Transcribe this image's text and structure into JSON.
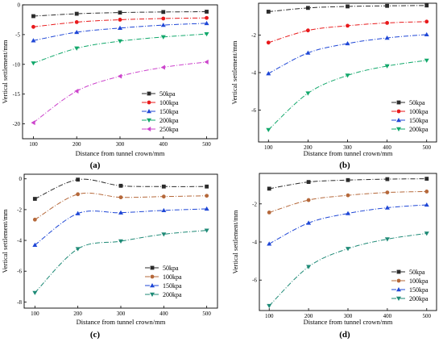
{
  "figure": {
    "panel_labels": [
      "(a)",
      "(b)",
      "(c)",
      "(d)"
    ]
  },
  "chart_data": [
    {
      "type": "line",
      "panel": "(a)",
      "xlabel": "Distance from tunnel crown/mm",
      "ylabel": "Vertical settlement/mm",
      "x": [
        100,
        200,
        300,
        400,
        500
      ],
      "xticks": [
        100,
        200,
        300,
        400,
        500
      ],
      "xlim": [
        75,
        525
      ],
      "yticks": [
        0,
        -5,
        -10,
        -15,
        -20
      ],
      "ylim": [
        -22.5,
        0
      ],
      "grid": false,
      "legend_position": "bottom-right",
      "series": [
        {
          "name": "50kpa",
          "values": [
            -1.9,
            -1.5,
            -1.3,
            -1.2,
            -1.15
          ],
          "color": "#2b2b2b",
          "marker": "square",
          "dash": "6,2,1,2"
        },
        {
          "name": "100kpa",
          "values": [
            -3.7,
            -2.9,
            -2.5,
            -2.3,
            -2.2
          ],
          "color": "#e8191b",
          "marker": "circle",
          "dash": "6,2,1,2"
        },
        {
          "name": "150kpa",
          "values": [
            -6.0,
            -4.6,
            -3.9,
            -3.4,
            -3.1
          ],
          "color": "#1f47d6",
          "marker": "triangle-up",
          "dash": "6,2,1,2"
        },
        {
          "name": "200kpa",
          "values": [
            -9.8,
            -7.3,
            -6.1,
            -5.4,
            -4.9
          ],
          "color": "#12a86b",
          "marker": "triangle-down",
          "dash": "6,2,1,2"
        },
        {
          "name": "250kpa",
          "values": [
            -19.8,
            -14.5,
            -12.0,
            -10.5,
            -9.6
          ],
          "color": "#cc44cc",
          "marker": "triangle-left",
          "dash": "6,2,1,2"
        }
      ]
    },
    {
      "type": "line",
      "panel": "(b)",
      "xlabel": "Distance from tunnel crown/mm",
      "ylabel": "Vertical settlement/mm",
      "x": [
        100,
        200,
        300,
        400,
        500
      ],
      "xticks": [
        100,
        200,
        300,
        400,
        500
      ],
      "xlim": [
        75,
        525
      ],
      "yticks": [
        -2,
        -4,
        -6
      ],
      "ylim": [
        -7.7,
        -0.3
      ],
      "grid": false,
      "legend_position": "bottom-right",
      "series": [
        {
          "name": "50kpa",
          "values": [
            -0.75,
            -0.55,
            -0.47,
            -0.44,
            -0.42
          ],
          "color": "#2b2b2b",
          "marker": "square",
          "dash": "6,2,1,2"
        },
        {
          "name": "100kpa",
          "values": [
            -2.4,
            -1.75,
            -1.5,
            -1.35,
            -1.28
          ],
          "color": "#e8191b",
          "marker": "circle",
          "dash": "6,2,1,2"
        },
        {
          "name": "150kpa",
          "values": [
            -4.05,
            -2.95,
            -2.45,
            -2.15,
            -1.97
          ],
          "color": "#1f47d6",
          "marker": "triangle-up",
          "dash": "6,2,1,2"
        },
        {
          "name": "200kpa",
          "values": [
            -7.05,
            -5.1,
            -4.15,
            -3.65,
            -3.35
          ],
          "color": "#12a86b",
          "marker": "triangle-down",
          "dash": "6,2,1,2"
        }
      ]
    },
    {
      "type": "line",
      "panel": "(c)",
      "xlabel": "Distance from tunnel crown/mm",
      "ylabel": "Vertical settlement/mm",
      "x": [
        100,
        200,
        300,
        400,
        500
      ],
      "xticks": [
        100,
        200,
        300,
        400,
        500
      ],
      "xlim": [
        75,
        525
      ],
      "yticks": [
        0,
        -2,
        -4,
        -6,
        -8
      ],
      "ylim": [
        -8.4,
        0.3
      ],
      "grid": false,
      "legend_position": "bottom-right",
      "series": [
        {
          "name": "50kpa",
          "values": [
            -1.3,
            -0.05,
            -0.45,
            -0.5,
            -0.5
          ],
          "color": "#2b2b2b",
          "marker": "square",
          "dash": "6,2,1,2"
        },
        {
          "name": "100kpa",
          "values": [
            -2.65,
            -1.0,
            -1.2,
            -1.15,
            -1.1
          ],
          "color": "#b5683a",
          "marker": "circle",
          "dash": "6,2,1,2"
        },
        {
          "name": "150kpa",
          "values": [
            -4.3,
            -2.25,
            -2.2,
            -2.05,
            -1.95
          ],
          "color": "#1f47d6",
          "marker": "triangle-up",
          "dash": "6,2,1,2"
        },
        {
          "name": "200kpa",
          "values": [
            -7.4,
            -4.55,
            -4.05,
            -3.6,
            -3.35
          ],
          "color": "#1e8a76",
          "marker": "triangle-down",
          "dash": "6,2,1,2"
        }
      ]
    },
    {
      "type": "line",
      "panel": "(d)",
      "xlabel": "Distance from tunnel crown/mm",
      "ylabel": "Vertical settlement/mm",
      "x": [
        100,
        200,
        300,
        400,
        500
      ],
      "xticks": [
        100,
        200,
        300,
        400,
        500
      ],
      "xlim": [
        75,
        525
      ],
      "yticks": [
        -2,
        -4,
        -6
      ],
      "ylim": [
        -7.6,
        -0.4
      ],
      "grid": false,
      "legend_position": "bottom-right",
      "series": [
        {
          "name": "50kpa",
          "values": [
            -1.2,
            -0.85,
            -0.75,
            -0.7,
            -0.68
          ],
          "color": "#2b2b2b",
          "marker": "square",
          "dash": "6,2,1,2"
        },
        {
          "name": "100kpa",
          "values": [
            -2.45,
            -1.8,
            -1.55,
            -1.4,
            -1.35
          ],
          "color": "#b5683a",
          "marker": "circle",
          "dash": "6,2,1,2"
        },
        {
          "name": "150kpa",
          "values": [
            -4.1,
            -3.0,
            -2.5,
            -2.2,
            -2.05
          ],
          "color": "#1f47d6",
          "marker": "triangle-up",
          "dash": "6,2,1,2"
        },
        {
          "name": "200kpa",
          "values": [
            -7.35,
            -5.3,
            -4.35,
            -3.85,
            -3.55
          ],
          "color": "#1e8a76",
          "marker": "triangle-down",
          "dash": "6,2,1,2"
        }
      ]
    }
  ]
}
